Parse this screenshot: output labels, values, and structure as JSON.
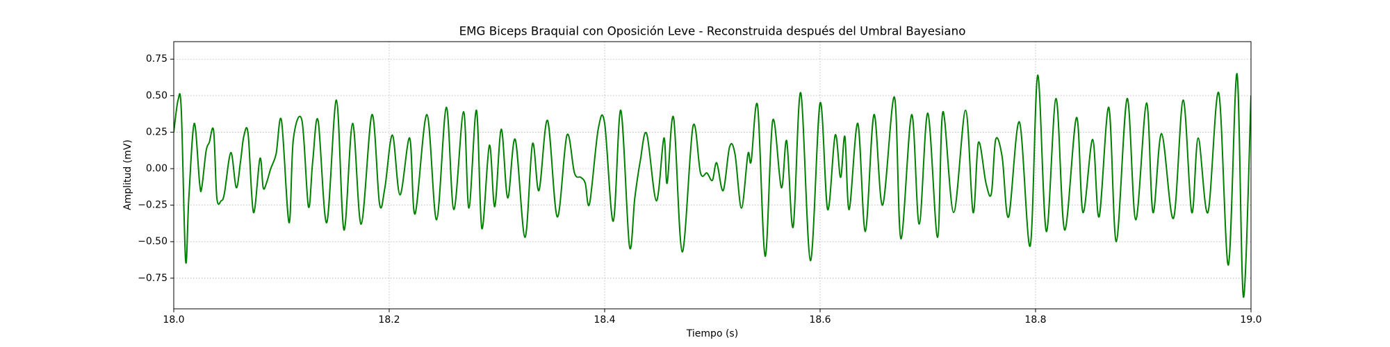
{
  "chart_data": {
    "type": "line",
    "title": "EMG Biceps Braquial con Oposición Leve - Reconstruida después del Umbral Bayesiano",
    "xlabel": "Tiempo (s)",
    "ylabel": "Amplitud (mV)",
    "x": [
      18.0,
      18.004,
      18.007,
      18.011,
      18.014,
      18.019,
      18.024,
      18.026,
      18.03,
      18.033,
      18.037,
      18.04,
      18.044,
      18.047,
      18.053,
      18.058,
      18.062,
      18.065,
      18.069,
      18.074,
      18.08,
      18.083,
      18.086,
      18.09,
      18.095,
      18.1,
      18.107,
      18.111,
      18.119,
      18.125,
      18.129,
      18.134,
      18.142,
      18.151,
      18.158,
      18.166,
      18.174,
      18.184,
      18.191,
      18.196,
      18.203,
      18.21,
      18.219,
      18.224,
      18.235,
      18.244,
      18.253,
      18.26,
      18.269,
      18.274,
      18.281,
      18.286,
      18.293,
      18.298,
      18.304,
      18.31,
      18.317,
      18.326,
      18.333,
      18.339,
      18.347,
      18.356,
      18.365,
      18.372,
      18.378,
      18.382,
      18.386,
      18.394,
      18.4,
      18.408,
      18.415,
      18.423,
      18.428,
      18.433,
      18.439,
      18.448,
      18.455,
      18.458,
      18.464,
      18.472,
      18.482,
      18.489,
      18.495,
      18.5,
      18.504,
      18.51,
      18.516,
      18.521,
      18.527,
      18.533,
      18.536,
      18.542,
      18.549,
      18.556,
      18.564,
      18.569,
      18.575,
      18.582,
      18.591,
      18.6,
      18.607,
      18.614,
      18.619,
      18.623,
      18.627,
      18.635,
      18.642,
      18.65,
      18.658,
      18.669,
      18.675,
      18.685,
      18.692,
      18.7,
      18.709,
      18.714,
      18.724,
      18.735,
      18.742,
      18.747,
      18.754,
      18.759,
      18.763,
      18.769,
      18.775,
      18.785,
      18.795,
      18.802,
      18.81,
      18.819,
      18.827,
      18.838,
      18.844,
      18.853,
      18.859,
      18.868,
      18.875,
      18.885,
      18.893,
      18.903,
      18.909,
      18.917,
      18.928,
      18.937,
      18.945,
      18.951,
      18.96,
      18.97,
      18.979,
      18.987,
      18.993,
      19.0
    ],
    "series": [
      {
        "color": "#008000",
        "values": [
          0.25,
          0.47,
          0.4,
          -0.63,
          -0.2,
          0.31,
          -0.1,
          -0.13,
          0.12,
          0.18,
          0.26,
          -0.2,
          -0.22,
          -0.17,
          0.11,
          -0.13,
          0.05,
          0.22,
          0.24,
          -0.3,
          0.07,
          -0.13,
          -0.1,
          0.0,
          0.1,
          0.33,
          -0.37,
          0.2,
          0.33,
          -0.26,
          0.05,
          0.33,
          -0.37,
          0.47,
          -0.42,
          0.31,
          -0.38,
          0.37,
          -0.24,
          -0.13,
          0.23,
          -0.18,
          0.21,
          -0.31,
          0.37,
          -0.35,
          0.42,
          -0.28,
          0.39,
          -0.27,
          0.4,
          -0.41,
          0.16,
          -0.26,
          0.27,
          -0.2,
          0.2,
          -0.47,
          0.17,
          -0.15,
          0.33,
          -0.33,
          0.23,
          -0.03,
          -0.06,
          -0.1,
          -0.24,
          0.27,
          0.31,
          -0.36,
          0.4,
          -0.53,
          -0.2,
          0.05,
          0.24,
          -0.22,
          0.21,
          -0.1,
          0.35,
          -0.57,
          0.29,
          -0.03,
          -0.03,
          -0.08,
          0.04,
          -0.15,
          0.15,
          0.1,
          -0.27,
          0.1,
          0.05,
          0.43,
          -0.6,
          0.33,
          -0.13,
          0.19,
          -0.4,
          0.52,
          -0.63,
          0.45,
          -0.28,
          0.23,
          -0.06,
          0.22,
          -0.28,
          0.31,
          -0.43,
          0.37,
          -0.25,
          0.49,
          -0.48,
          0.37,
          -0.38,
          0.38,
          -0.47,
          0.39,
          -0.3,
          0.4,
          -0.3,
          0.18,
          -0.1,
          -0.17,
          0.2,
          0.08,
          -0.33,
          0.32,
          -0.53,
          0.64,
          -0.43,
          0.48,
          -0.42,
          0.35,
          -0.3,
          0.2,
          -0.33,
          0.42,
          -0.5,
          0.48,
          -0.35,
          0.45,
          -0.3,
          0.24,
          -0.34,
          0.47,
          -0.3,
          0.21,
          -0.3,
          0.52,
          -0.66,
          0.65,
          -0.88,
          0.5
        ]
      }
    ],
    "xlim": [
      18,
      19
    ],
    "ylim": [
      -0.96,
      0.87
    ],
    "xticks": [
      {
        "value": 18,
        "label": "18.0"
      },
      18.2,
      18.4,
      18.6,
      18.8,
      {
        "value": 19,
        "label": "19.0"
      }
    ],
    "yticks": [
      {
        "value": -0.75,
        "label": "−0.75"
      },
      {
        "value": -0.5,
        "label": "−0.50"
      },
      {
        "value": -0.25,
        "label": "−0.25"
      },
      {
        "value": 0,
        "label": "0.00"
      },
      0.25,
      {
        "value": 0.5,
        "label": "0.50"
      },
      0.75
    ],
    "grid": true
  }
}
